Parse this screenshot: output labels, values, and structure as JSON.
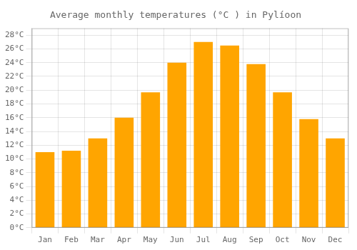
{
  "chart_data": {
    "type": "bar",
    "title": "Average monthly temperatures (°C ) in Pylíoon",
    "categories": [
      "Jan",
      "Feb",
      "Mar",
      "Apr",
      "May",
      "Jun",
      "Jul",
      "Aug",
      "Sep",
      "Oct",
      "Nov",
      "Dec"
    ],
    "values": [
      11.0,
      11.2,
      13.0,
      16.0,
      19.7,
      24.0,
      27.0,
      26.5,
      23.8,
      19.7,
      15.8,
      13.0
    ],
    "color": "#FFA500",
    "ylim": [
      0,
      29
    ],
    "yticks": [
      {
        "value": 0,
        "label": "0°C"
      },
      {
        "value": 2,
        "label": "2°C"
      },
      {
        "value": 4,
        "label": "4°C"
      },
      {
        "value": 6,
        "label": "6°C"
      },
      {
        "value": 8,
        "label": "8°C"
      },
      {
        "value": 10,
        "label": "10°C"
      },
      {
        "value": 12,
        "label": "12°C"
      },
      {
        "value": 14,
        "label": "14°C"
      },
      {
        "value": 16,
        "label": "16°C"
      },
      {
        "value": 18,
        "label": "18°C"
      },
      {
        "value": 20,
        "label": "20°C"
      },
      {
        "value": 22,
        "label": "22°C"
      },
      {
        "value": 24,
        "label": "24°C"
      },
      {
        "value": 26,
        "label": "26°C"
      },
      {
        "value": 28,
        "label": "28°C"
      }
    ],
    "grid": true
  }
}
